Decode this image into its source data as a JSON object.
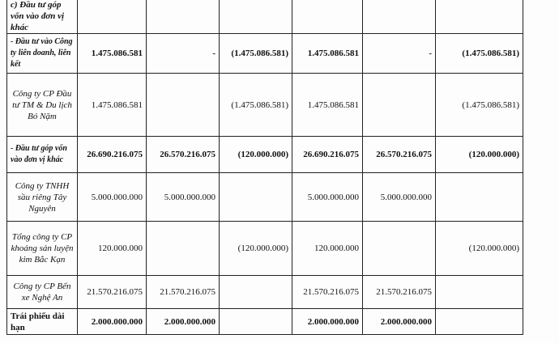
{
  "table": {
    "rows": [
      {
        "label": "c) Đầu tư góp vốn vào đơn vị khác",
        "values": [
          null,
          null,
          null,
          null,
          null,
          null
        ]
      },
      {
        "label": "- Đầu tư vào Công ty liên doanh, liên kết",
        "values": [
          "1.475.086.581",
          "-",
          "(1.475.086.581)",
          "1.475.086.581",
          "-",
          "(1.475.086.581)"
        ]
      },
      {
        "label": "Công ty CP Đầu tư TM & Du lịch Bó Nặm",
        "values": [
          "1.475.086.581",
          null,
          "(1.475.086.581)",
          "1.475.086.581",
          null,
          "(1.475.086.581)"
        ]
      },
      {
        "label": "- Đầu tư góp vốn vào đơn vị khác",
        "values": [
          "26.690.216.075",
          "26.570.216.075",
          "(120.000.000)",
          "26.690.216.075",
          "26.570.216.075",
          "(120.000.000)"
        ]
      },
      {
        "label": "Công ty TNHH sầu riêng Tây Nguyên",
        "values": [
          "5.000.000.000",
          "5.000.000.000",
          null,
          "5.000.000.000",
          "5.000.000.000",
          null
        ]
      },
      {
        "label": "Tổng công ty CP khoáng sản luyện kim Bắc Kạn",
        "values": [
          "120.000.000",
          null,
          "(120.000.000)",
          "120.000.000",
          null,
          "(120.000.000)"
        ]
      },
      {
        "label": "Công ty CP Bến xe Nghệ An",
        "values": [
          "21.570.216.075",
          "21.570.216.075",
          null,
          "21.570.216.075",
          "21.570.216.075",
          null
        ]
      },
      {
        "label": "Trái phiếu dài hạn",
        "values": [
          "2.000.000.000",
          "2.000.000.000",
          null,
          "2.000.000.000",
          "2.000.000.000",
          null
        ]
      }
    ]
  }
}
